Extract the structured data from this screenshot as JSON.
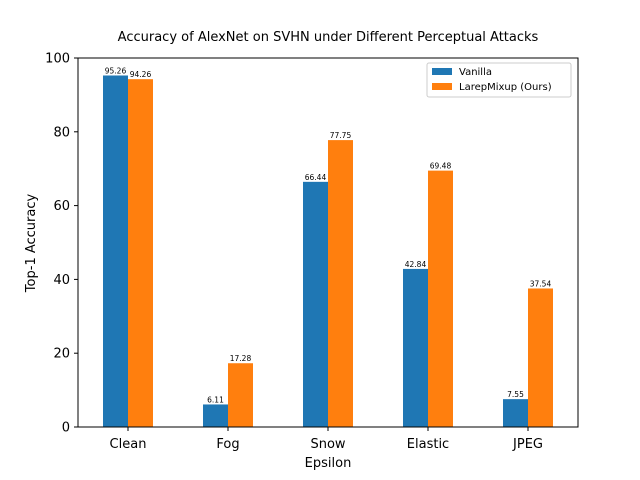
{
  "chart_data": {
    "type": "bar",
    "title": "Accuracy of AlexNet on SVHN under Different Perceptual Attacks",
    "xlabel": "Epsilon",
    "ylabel": "Top-1 Accuracy",
    "categories": [
      "Clean",
      "Fog",
      "Snow",
      "Elastic",
      "JPEG"
    ],
    "series": [
      {
        "name": "Vanilla",
        "color": "#1f77b4",
        "values": [
          95.26,
          6.11,
          66.44,
          42.84,
          7.55
        ],
        "labels": [
          "95.26",
          "6.11",
          "66.44",
          "42.84",
          "7.55"
        ]
      },
      {
        "name": "LarepMixup (Ours)",
        "color": "#ff7f0e",
        "values": [
          94.26,
          17.28,
          77.75,
          69.48,
          37.54
        ],
        "labels": [
          "94.26",
          "17.28",
          "77.75",
          "69.48",
          "37.54"
        ]
      }
    ],
    "ylim": [
      0,
      100
    ],
    "yticks": [
      0,
      20,
      40,
      60,
      80,
      100
    ],
    "ytick_labels": [
      "0",
      "20",
      "40",
      "60",
      "80",
      "100"
    ],
    "legend": "top-right",
    "grid": false
  }
}
